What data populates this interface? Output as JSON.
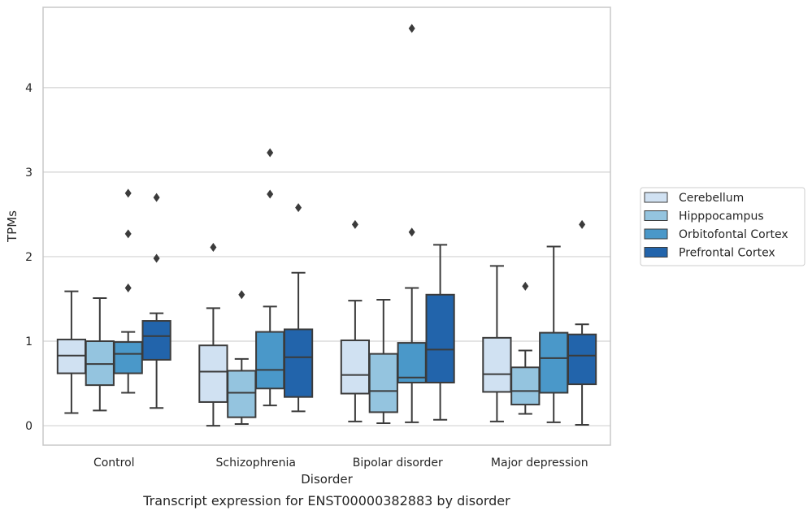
{
  "caption": "Transcript expression for ENST00000382883 by disorder",
  "colors": {
    "Cerebellum": "#d0e1f2",
    "Hipppocampus": "#94c4df",
    "Orbitofontal Cortex": "#4a98c9",
    "Prefrontal Cortex": "#2264ab",
    "box_edge": "#3b3b3b",
    "grid": "#d3d3d3",
    "frame": "#c8c8c8"
  },
  "chart_data": {
    "type": "box",
    "xlabel": "Disorder",
    "ylabel": "TPMs",
    "ylim": [
      -0.23,
      4.95
    ],
    "yticks": [
      0,
      1,
      2,
      3,
      4
    ],
    "grid": "horizontal",
    "legend_position": "right",
    "categories": [
      "Control",
      "Schizophrenia",
      "Bipolar disorder",
      "Major depression"
    ],
    "series": [
      {
        "name": "Cerebellum",
        "boxes": [
          {
            "q1": 0.62,
            "median": 0.83,
            "q3": 1.02,
            "whisker_low": 0.15,
            "whisker_high": 1.59,
            "outliers": []
          },
          {
            "q1": 0.28,
            "median": 0.64,
            "q3": 0.95,
            "whisker_low": 0.0,
            "whisker_high": 1.39,
            "outliers": [
              2.11
            ]
          },
          {
            "q1": 0.38,
            "median": 0.6,
            "q3": 1.01,
            "whisker_low": 0.05,
            "whisker_high": 1.48,
            "outliers": [
              2.38
            ]
          },
          {
            "q1": 0.4,
            "median": 0.61,
            "q3": 1.04,
            "whisker_low": 0.05,
            "whisker_high": 1.89,
            "outliers": []
          }
        ]
      },
      {
        "name": "Hipppocampus",
        "boxes": [
          {
            "q1": 0.48,
            "median": 0.73,
            "q3": 1.0,
            "whisker_low": 0.18,
            "whisker_high": 1.51,
            "outliers": []
          },
          {
            "q1": 0.1,
            "median": 0.39,
            "q3": 0.65,
            "whisker_low": 0.02,
            "whisker_high": 0.79,
            "outliers": [
              1.55
            ]
          },
          {
            "q1": 0.16,
            "median": 0.41,
            "q3": 0.85,
            "whisker_low": 0.03,
            "whisker_high": 1.49,
            "outliers": []
          },
          {
            "q1": 0.25,
            "median": 0.41,
            "q3": 0.69,
            "whisker_low": 0.14,
            "whisker_high": 0.89,
            "outliers": [
              1.65
            ]
          }
        ]
      },
      {
        "name": "Orbitofontal Cortex",
        "boxes": [
          {
            "q1": 0.62,
            "median": 0.85,
            "q3": 0.99,
            "whisker_low": 0.39,
            "whisker_high": 1.11,
            "outliers": [
              1.63,
              2.27,
              2.75
            ]
          },
          {
            "q1": 0.44,
            "median": 0.66,
            "q3": 1.11,
            "whisker_low": 0.24,
            "whisker_high": 1.41,
            "outliers": [
              2.74,
              3.23
            ]
          },
          {
            "q1": 0.51,
            "median": 0.57,
            "q3": 0.98,
            "whisker_low": 0.04,
            "whisker_high": 1.63,
            "outliers": [
              2.29,
              4.7
            ]
          },
          {
            "q1": 0.39,
            "median": 0.8,
            "q3": 1.1,
            "whisker_low": 0.04,
            "whisker_high": 2.12,
            "outliers": []
          }
        ]
      },
      {
        "name": "Prefrontal Cortex",
        "boxes": [
          {
            "q1": 0.78,
            "median": 1.06,
            "q3": 1.24,
            "whisker_low": 0.21,
            "whisker_high": 1.33,
            "outliers": [
              1.98,
              2.7
            ]
          },
          {
            "q1": 0.34,
            "median": 0.81,
            "q3": 1.14,
            "whisker_low": 0.17,
            "whisker_high": 1.81,
            "outliers": [
              2.58
            ]
          },
          {
            "q1": 0.51,
            "median": 0.9,
            "q3": 1.55,
            "whisker_low": 0.07,
            "whisker_high": 2.14,
            "outliers": []
          },
          {
            "q1": 0.49,
            "median": 0.83,
            "q3": 1.08,
            "whisker_low": 0.01,
            "whisker_high": 1.2,
            "outliers": [
              2.38
            ]
          }
        ]
      }
    ]
  }
}
